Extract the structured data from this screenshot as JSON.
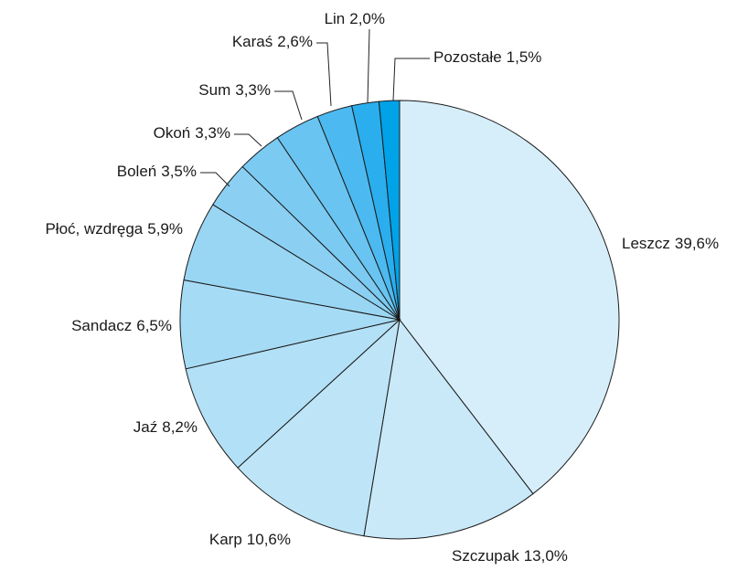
{
  "chart_data": {
    "type": "pie",
    "categories": [
      "Leszcz",
      "Szczupak",
      "Karp",
      "Jaź",
      "Sandacz",
      "Płoć, wzdręga",
      "Boleń",
      "Okoń",
      "Sum",
      "Karaś",
      "Lin",
      "Pozostałe"
    ],
    "values": [
      39.6,
      13.0,
      10.6,
      8.2,
      6.5,
      5.9,
      3.5,
      3.3,
      3.3,
      2.6,
      2.0,
      1.5
    ],
    "value_labels": [
      "39,6%",
      "13,0%",
      "10,6%",
      "8,2%",
      "6,5%",
      "5,9%",
      "3,5%",
      "3,3%",
      "3,3%",
      "2,6%",
      "2,0%",
      "1,5%"
    ],
    "colors": [
      "#d6eefa",
      "#c9e9f8",
      "#bee5f7",
      "#b2e0f6",
      "#a6dbf5",
      "#99d6f4",
      "#8bd0f3",
      "#7bcaf2",
      "#69c4f1",
      "#4cbaf0",
      "#2aaeee",
      "#00a2e8"
    ]
  }
}
